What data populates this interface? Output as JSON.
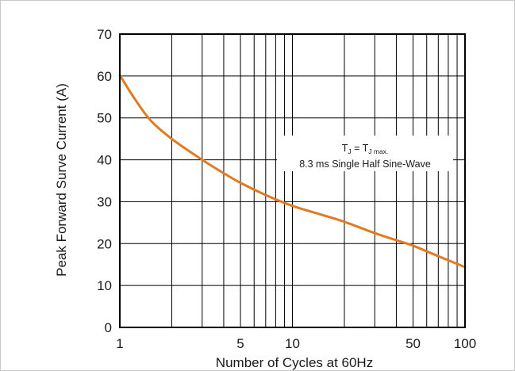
{
  "chart_data": {
    "type": "line",
    "xscale": "log",
    "xlim": [
      1,
      100
    ],
    "ylim": [
      0,
      70
    ],
    "grid": true,
    "xlabel": "Number of Cycles at 60Hz",
    "ylabel": "Peak Forward Surve Current (A)",
    "x_ticks": [
      1,
      5,
      10,
      50,
      100
    ],
    "x_tick_labels": [
      "1",
      "5",
      "10",
      "50",
      "100"
    ],
    "y_ticks": [
      0,
      10,
      20,
      30,
      40,
      50,
      60,
      70
    ],
    "y_tick_labels": [
      "0",
      "10",
      "20",
      "30",
      "40",
      "50",
      "60",
      "70"
    ],
    "annotation": {
      "line1_a": "T",
      "line1_a_sub": "J",
      "line1_b": " = T",
      "line1_b_sub": "J max.",
      "line2": "8.3 ms Single Half Sine-Wave"
    },
    "series": [
      {
        "color": "#e07b22",
        "x": [
          1,
          1.2,
          1.5,
          2,
          3,
          4,
          5,
          7,
          10,
          15,
          20,
          30,
          40,
          50,
          70,
          100
        ],
        "y": [
          60.2,
          55,
          49.5,
          45,
          40,
          36.8,
          34.5,
          31.6,
          29,
          26.8,
          25.2,
          22.5,
          20.8,
          19.5,
          17,
          14.4
        ]
      }
    ]
  }
}
